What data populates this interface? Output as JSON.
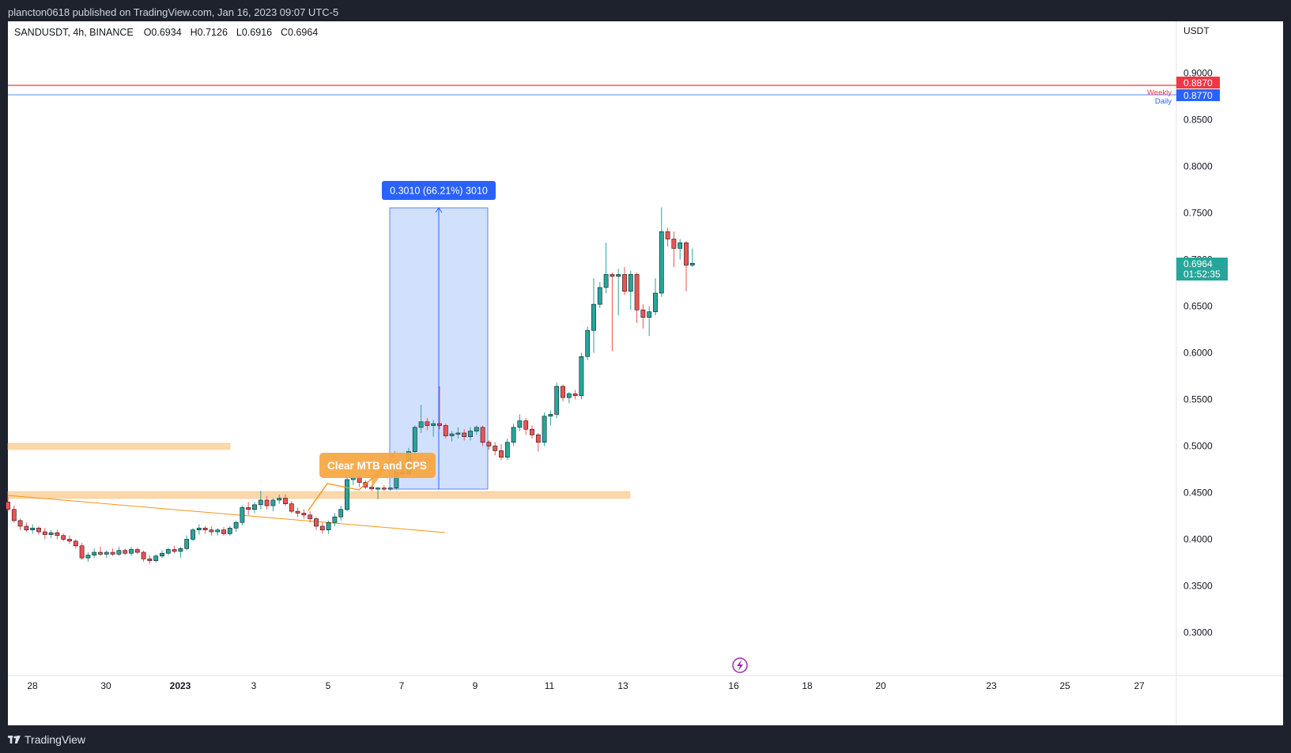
{
  "header": {
    "publish_text": "plancton0618 published on TradingView.com, Jan 16, 2023 09:07 UTC-5"
  },
  "legend": {
    "symbol": "SANDUSDT, 4h, BINANCE",
    "open": "O0.6934",
    "high": "H0.7126",
    "low": "L0.6916",
    "close": "C0.6964"
  },
  "axis": {
    "currency": "USDT",
    "ticks": [
      "0.9000",
      "0.8500",
      "0.8000",
      "0.7500",
      "0.7000",
      "0.6500",
      "0.6000",
      "0.5500",
      "0.5000",
      "0.4500",
      "0.4000",
      "0.3500",
      "0.3000"
    ],
    "x_ticks": [
      "28",
      "30",
      "2023",
      "3",
      "5",
      "7",
      "9",
      "11",
      "13",
      "16",
      "18",
      "20",
      "23",
      "25",
      "27"
    ]
  },
  "price_labels": {
    "weekly_value": "0.8870",
    "weekly_tag": "Weekly",
    "daily_value": "0.8770",
    "daily_tag": "Daily",
    "current_value": "0.6964",
    "countdown": "01:52:35"
  },
  "annotations": {
    "measure_label": "0.3010 (66.21%) 3010",
    "callout": "Clear MTB and CPS"
  },
  "footer": {
    "brand": "TradingView"
  },
  "colors": {
    "up": "#26a69a",
    "down": "#ef5350",
    "weekly": "#f23645",
    "daily": "#2962ff",
    "zone": "#fbd7a9",
    "trend": "#f7931a",
    "measure_fill": "#c9dafd",
    "measure_label_bg": "#2962ff",
    "current": "#26a69a"
  },
  "chart_data": {
    "type": "candlestick",
    "symbol": "SANDUSDT",
    "timeframe": "4h",
    "ylim": [
      0.26,
      0.95
    ],
    "weekly_level": 0.887,
    "daily_level": 0.877,
    "current_price": 0.6964,
    "measure": {
      "from": 0.4546,
      "to": 0.7556,
      "change": 0.301,
      "percent": 66.21
    },
    "candles": [
      [
        0.44,
        0.445,
        0.43,
        0.432
      ],
      [
        0.432,
        0.436,
        0.418,
        0.42
      ],
      [
        0.42,
        0.422,
        0.41,
        0.414
      ],
      [
        0.414,
        0.418,
        0.408,
        0.41
      ],
      [
        0.41,
        0.416,
        0.406,
        0.412
      ],
      [
        0.412,
        0.414,
        0.405,
        0.408
      ],
      [
        0.408,
        0.412,
        0.4,
        0.405
      ],
      [
        0.405,
        0.41,
        0.401,
        0.407
      ],
      [
        0.407,
        0.41,
        0.4,
        0.404
      ],
      [
        0.404,
        0.406,
        0.398,
        0.4
      ],
      [
        0.4,
        0.404,
        0.395,
        0.398
      ],
      [
        0.398,
        0.4,
        0.39,
        0.393
      ],
      [
        0.393,
        0.396,
        0.378,
        0.38
      ],
      [
        0.38,
        0.386,
        0.376,
        0.383
      ],
      [
        0.383,
        0.39,
        0.38,
        0.386
      ],
      [
        0.386,
        0.392,
        0.382,
        0.384
      ],
      [
        0.384,
        0.388,
        0.38,
        0.386
      ],
      [
        0.386,
        0.39,
        0.382,
        0.384
      ],
      [
        0.384,
        0.392,
        0.382,
        0.388
      ],
      [
        0.388,
        0.39,
        0.383,
        0.385
      ],
      [
        0.385,
        0.392,
        0.382,
        0.389
      ],
      [
        0.389,
        0.391,
        0.384,
        0.386
      ],
      [
        0.386,
        0.388,
        0.376,
        0.379
      ],
      [
        0.379,
        0.383,
        0.374,
        0.377
      ],
      [
        0.377,
        0.384,
        0.375,
        0.382
      ],
      [
        0.382,
        0.388,
        0.38,
        0.385
      ],
      [
        0.385,
        0.391,
        0.383,
        0.389
      ],
      [
        0.389,
        0.393,
        0.385,
        0.387
      ],
      [
        0.387,
        0.392,
        0.38,
        0.39
      ],
      [
        0.39,
        0.404,
        0.388,
        0.4
      ],
      [
        0.4,
        0.412,
        0.398,
        0.41
      ],
      [
        0.41,
        0.416,
        0.405,
        0.412
      ],
      [
        0.412,
        0.414,
        0.406,
        0.41
      ],
      [
        0.41,
        0.414,
        0.404,
        0.408
      ],
      [
        0.408,
        0.412,
        0.404,
        0.41
      ],
      [
        0.41,
        0.413,
        0.404,
        0.406
      ],
      [
        0.406,
        0.414,
        0.404,
        0.412
      ],
      [
        0.412,
        0.42,
        0.408,
        0.418
      ],
      [
        0.418,
        0.436,
        0.415,
        0.434
      ],
      [
        0.434,
        0.44,
        0.426,
        0.432
      ],
      [
        0.432,
        0.44,
        0.428,
        0.437
      ],
      [
        0.437,
        0.452,
        0.432,
        0.442
      ],
      [
        0.442,
        0.446,
        0.432,
        0.436
      ],
      [
        0.436,
        0.444,
        0.43,
        0.442
      ],
      [
        0.442,
        0.448,
        0.438,
        0.444
      ],
      [
        0.444,
        0.448,
        0.436,
        0.438
      ],
      [
        0.438,
        0.441,
        0.428,
        0.43
      ],
      [
        0.43,
        0.434,
        0.424,
        0.428
      ],
      [
        0.428,
        0.432,
        0.422,
        0.426
      ],
      [
        0.426,
        0.43,
        0.418,
        0.422
      ],
      [
        0.422,
        0.424,
        0.41,
        0.414
      ],
      [
        0.414,
        0.418,
        0.406,
        0.41
      ],
      [
        0.41,
        0.42,
        0.406,
        0.418
      ],
      [
        0.418,
        0.428,
        0.414,
        0.424
      ],
      [
        0.424,
        0.436,
        0.42,
        0.432
      ],
      [
        0.432,
        0.468,
        0.43,
        0.464
      ],
      [
        0.464,
        0.472,
        0.458,
        0.466
      ],
      [
        0.466,
        0.468,
        0.456,
        0.461
      ],
      [
        0.461,
        0.463,
        0.454,
        0.456
      ],
      [
        0.456,
        0.458,
        0.452,
        0.454
      ],
      [
        0.454,
        0.456,
        0.443,
        0.455
      ],
      [
        0.455,
        0.458,
        0.452,
        0.454
      ],
      [
        0.454,
        0.456,
        0.452,
        0.455
      ],
      [
        0.455,
        0.478,
        0.453,
        0.472
      ],
      [
        0.472,
        0.482,
        0.466,
        0.47
      ],
      [
        0.47,
        0.498,
        0.468,
        0.494
      ],
      [
        0.494,
        0.522,
        0.49,
        0.52
      ],
      [
        0.52,
        0.544,
        0.514,
        0.526
      ],
      [
        0.526,
        0.53,
        0.517,
        0.522
      ],
      [
        0.522,
        0.528,
        0.51,
        0.524
      ],
      [
        0.524,
        0.564,
        0.518,
        0.522
      ],
      [
        0.522,
        0.524,
        0.508,
        0.511
      ],
      [
        0.511,
        0.516,
        0.505,
        0.513
      ],
      [
        0.513,
        0.52,
        0.508,
        0.514
      ],
      [
        0.514,
        0.518,
        0.506,
        0.51
      ],
      [
        0.51,
        0.52,
        0.506,
        0.516
      ],
      [
        0.516,
        0.522,
        0.512,
        0.52
      ],
      [
        0.52,
        0.522,
        0.5,
        0.504
      ],
      [
        0.504,
        0.506,
        0.496,
        0.5
      ],
      [
        0.5,
        0.504,
        0.49,
        0.495
      ],
      [
        0.495,
        0.502,
        0.485,
        0.488
      ],
      [
        0.488,
        0.508,
        0.485,
        0.504
      ],
      [
        0.504,
        0.524,
        0.5,
        0.52
      ],
      [
        0.52,
        0.534,
        0.516,
        0.527
      ],
      [
        0.527,
        0.53,
        0.512,
        0.518
      ],
      [
        0.518,
        0.522,
        0.508,
        0.512
      ],
      [
        0.512,
        0.514,
        0.494,
        0.504
      ],
      [
        0.504,
        0.536,
        0.5,
        0.532
      ],
      [
        0.532,
        0.538,
        0.522,
        0.534
      ],
      [
        0.534,
        0.568,
        0.53,
        0.564
      ],
      [
        0.564,
        0.566,
        0.548,
        0.552
      ],
      [
        0.552,
        0.558,
        0.546,
        0.556
      ],
      [
        0.556,
        0.56,
        0.55,
        0.554
      ],
      [
        0.554,
        0.6,
        0.55,
        0.596
      ],
      [
        0.596,
        0.628,
        0.592,
        0.624
      ],
      [
        0.624,
        0.68,
        0.6,
        0.652
      ],
      [
        0.652,
        0.676,
        0.648,
        0.67
      ],
      [
        0.67,
        0.718,
        0.664,
        0.684
      ],
      [
        0.684,
        0.686,
        0.602,
        0.682
      ],
      [
        0.682,
        0.69,
        0.64,
        0.684
      ],
      [
        0.684,
        0.692,
        0.662,
        0.666
      ],
      [
        0.666,
        0.688,
        0.646,
        0.684
      ],
      [
        0.684,
        0.686,
        0.632,
        0.646
      ],
      [
        0.646,
        0.652,
        0.626,
        0.638
      ],
      [
        0.638,
        0.65,
        0.618,
        0.644
      ],
      [
        0.644,
        0.68,
        0.64,
        0.664
      ],
      [
        0.664,
        0.756,
        0.66,
        0.73
      ],
      [
        0.73,
        0.734,
        0.714,
        0.722
      ],
      [
        0.722,
        0.73,
        0.692,
        0.712
      ],
      [
        0.712,
        0.722,
        0.7,
        0.718
      ],
      [
        0.718,
        0.72,
        0.666,
        0.694
      ],
      [
        0.694,
        0.712,
        0.692,
        0.696
      ]
    ]
  }
}
